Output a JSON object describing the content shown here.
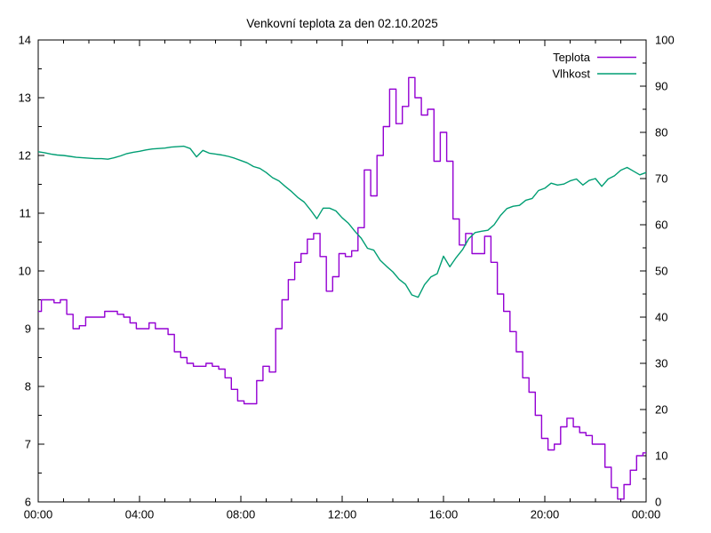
{
  "title": "Venkovní teplota za den 02.10.2025",
  "colors": {
    "teplota": "#9400d3",
    "vlhkost": "#009e73",
    "axis": "#000000",
    "background": "#ffffff"
  },
  "legend": {
    "position": "top-right-inside",
    "entries": [
      {
        "label": "Teplota",
        "series": "teplota"
      },
      {
        "label": "Vlhkost",
        "series": "vlhkost"
      }
    ]
  },
  "chart_data": {
    "type": "line",
    "title": "Venkovní teplota za den 02.10.2025",
    "grid": false,
    "legend_position": "top-right-inside",
    "x_unit": "hours-since-00:00",
    "x_axis": {
      "min": 0,
      "max": 24,
      "major_step": 4,
      "minor_step": 1,
      "tick_labels": [
        "00:00",
        "04:00",
        "08:00",
        "12:00",
        "16:00",
        "20:00",
        "00:00"
      ]
    },
    "y_left": {
      "min": 6,
      "max": 14,
      "major_step": 1,
      "minor_step": 0.5,
      "tick_labels": [
        "6",
        "7",
        "8",
        "9",
        "10",
        "11",
        "12",
        "13",
        "14"
      ]
    },
    "y_right": {
      "min": 0,
      "max": 100,
      "major_step": 10,
      "minor_step": 5,
      "tick_labels": [
        "0",
        "10",
        "20",
        "30",
        "40",
        "50",
        "60",
        "70",
        "80",
        "90",
        "100"
      ]
    },
    "x": [
      0,
      0.25,
      0.5,
      0.75,
      1,
      1.25,
      1.5,
      1.75,
      2,
      2.25,
      2.5,
      2.75,
      3,
      3.25,
      3.5,
      3.75,
      4,
      4.25,
      4.5,
      4.75,
      5,
      5.25,
      5.5,
      5.75,
      6,
      6.25,
      6.5,
      6.75,
      7,
      7.25,
      7.5,
      7.75,
      8,
      8.25,
      8.5,
      8.75,
      9,
      9.25,
      9.5,
      9.75,
      10,
      10.25,
      10.5,
      10.75,
      11,
      11.25,
      11.5,
      11.75,
      12,
      12.25,
      12.5,
      12.75,
      13,
      13.25,
      13.5,
      13.75,
      14,
      14.25,
      14.5,
      14.75,
      15,
      15.25,
      15.5,
      15.75,
      16,
      16.25,
      16.5,
      16.75,
      17,
      17.25,
      17.5,
      17.75,
      18,
      18.25,
      18.5,
      18.75,
      19,
      19.25,
      19.5,
      19.75,
      20,
      20.25,
      20.5,
      20.75,
      21,
      21.25,
      21.5,
      21.75,
      22,
      22.25,
      22.5,
      22.75,
      23,
      23.25,
      23.5,
      23.75,
      24
    ],
    "series": [
      {
        "name": "Teplota",
        "axis": "left",
        "color": "#9400d3",
        "style": "steps",
        "values": [
          9.3,
          9.5,
          9.5,
          9.45,
          9.5,
          9.25,
          9.0,
          9.05,
          9.2,
          9.2,
          9.2,
          9.3,
          9.3,
          9.25,
          9.2,
          9.1,
          9.0,
          9.0,
          9.1,
          9.0,
          9.0,
          8.9,
          8.6,
          8.5,
          8.4,
          8.35,
          8.35,
          8.4,
          8.35,
          8.3,
          8.15,
          7.95,
          7.75,
          7.7,
          7.7,
          8.1,
          8.35,
          8.25,
          9.0,
          9.5,
          9.85,
          10.15,
          10.3,
          10.55,
          10.65,
          10.25,
          9.65,
          9.9,
          10.3,
          10.25,
          10.35,
          10.75,
          11.75,
          11.3,
          12.0,
          12.5,
          13.15,
          12.55,
          12.85,
          13.35,
          13.0,
          12.7,
          12.8,
          11.9,
          12.4,
          11.9,
          10.9,
          10.45,
          10.65,
          10.3,
          10.3,
          10.6,
          10.15,
          9.6,
          9.3,
          8.95,
          8.6,
          8.15,
          7.9,
          7.5,
          7.1,
          6.9,
          7.0,
          7.3,
          7.45,
          7.3,
          7.2,
          7.15,
          7.0,
          7.0,
          6.6,
          6.25,
          6.05,
          6.3,
          6.55,
          6.8,
          6.85
        ]
      },
      {
        "name": "Vlhkost",
        "axis": "right",
        "color": "#009e73",
        "style": "lines",
        "values": [
          75.8,
          75.6,
          75.3,
          75.1,
          75.0,
          74.8,
          74.6,
          74.5,
          74.4,
          74.3,
          74.3,
          74.2,
          74.5,
          74.9,
          75.4,
          75.7,
          75.9,
          76.2,
          76.4,
          76.5,
          76.6,
          76.8,
          76.9,
          77.0,
          76.5,
          74.7,
          76.1,
          75.5,
          75.3,
          75.1,
          74.8,
          74.4,
          73.9,
          73.4,
          72.6,
          72.2,
          71.3,
          70.2,
          69.5,
          68.3,
          67.2,
          65.9,
          64.9,
          63.2,
          61.3,
          63.6,
          63.6,
          63.0,
          61.5,
          60.3,
          58.6,
          57.1,
          54.9,
          54.5,
          52.3,
          51.0,
          49.8,
          48.2,
          47.1,
          44.8,
          44.3,
          47.0,
          48.7,
          49.4,
          53.2,
          50.9,
          52.9,
          54.6,
          57.0,
          58.3,
          58.6,
          58.8,
          60.0,
          62.0,
          63.5,
          64.0,
          64.2,
          65.3,
          65.7,
          67.4,
          67.9,
          69.0,
          68.6,
          68.8,
          69.5,
          69.9,
          68.6,
          69.6,
          70.0,
          68.3,
          69.9,
          70.6,
          71.8,
          72.4,
          71.6,
          70.8,
          71.3
        ]
      }
    ]
  }
}
